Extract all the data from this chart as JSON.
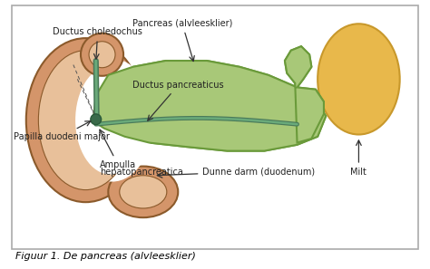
{
  "bg_color": "#ffffff",
  "border_color": "#cccccc",
  "figure_caption": "Figuur 1. De pancreas (alvleesklier)",
  "label_ductus_choledochus": "Ductus choledochus",
  "label_pancreas": "Pancreas (alvleesklier)",
  "label_ductus_pancreaticus": "Ductus pancreaticus",
  "label_papilla": "Papilla duodeni major",
  "label_ampulla_1": "Ampulla",
  "label_ampulla_2": "hepatopancreatica",
  "label_dunne_darm": "Dunne darm (duodenum)",
  "label_milt": "Milt",
  "duodenum_outer": "#d4956a",
  "duodenum_inner": "#e8c09a",
  "duodenum_stroke": "#8b5a2b",
  "pancreas_fill": "#a8c878",
  "pancreas_stroke": "#6a9a3a",
  "milt_fill": "#e8b84b",
  "milt_stroke": "#c8982b",
  "duct_dark": "#4a7a5a",
  "duct_light": "#6aaa7a",
  "text_color": "#222222",
  "arrow_color": "#333333",
  "caption_color": "#000000",
  "fs_label": 7.0,
  "fs_caption": 8.0
}
